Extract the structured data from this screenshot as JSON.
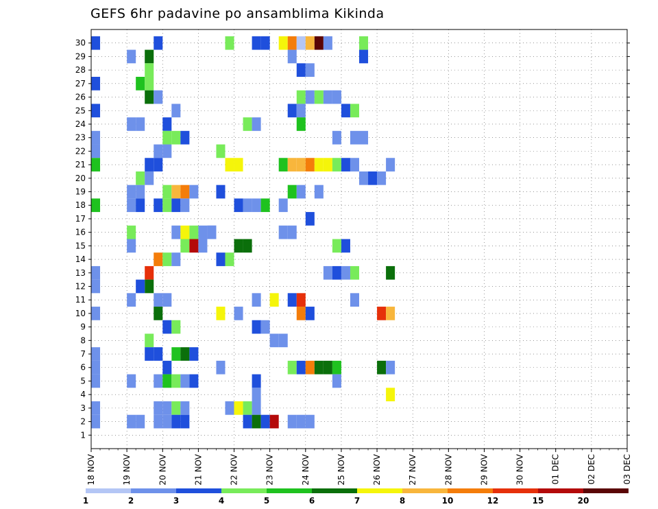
{
  "chart_data": {
    "type": "heatmap",
    "title": "GEFS 6hr padavine po ansamblima Kikinda",
    "y_ticks": [
      "1",
      "2",
      "3",
      "4",
      "5",
      "6",
      "7",
      "8",
      "9",
      "10",
      "11",
      "12",
      "13",
      "14",
      "15",
      "16",
      "17",
      "18",
      "19",
      "20",
      "21",
      "22",
      "23",
      "24",
      "25",
      "26",
      "27",
      "28",
      "29",
      "30"
    ],
    "x_ticks": [
      "18 NOV",
      "19 NOV",
      "20 NOV",
      "21 NOV",
      "22 NOV",
      "23 NOV",
      "24 NOV",
      "25 NOV",
      "26 NOV",
      "27 NOV",
      "28 NOV",
      "29 NOV",
      "30 NOV",
      "01 DEC",
      "02 DEC",
      "03 DEC"
    ],
    "x_steps_per_day": 4,
    "x_range_steps": [
      0,
      60
    ],
    "y_range_members": [
      0,
      30
    ],
    "grid": true,
    "colorbar": {
      "colors": [
        "#b4c6f5",
        "#6e91ea",
        "#1f4fdc",
        "#78eb5a",
        "#1fc21f",
        "#0b6f0b",
        "#f5f50a",
        "#f8b63c",
        "#f47d0a",
        "#e6300a",
        "#b40a0a",
        "#5a0505"
      ],
      "labels": [
        "1",
        "2",
        "3",
        "4",
        "5",
        "6",
        "7",
        "8",
        "10",
        "12",
        "15",
        "20"
      ],
      "placement": "bottom"
    },
    "cells": [
      [
        30,
        0,
        2
      ],
      [
        30,
        7,
        2
      ],
      [
        30,
        15,
        3
      ],
      [
        30,
        18,
        2
      ],
      [
        30,
        19,
        2
      ],
      [
        30,
        21,
        6
      ],
      [
        30,
        22,
        8
      ],
      [
        30,
        23,
        0
      ],
      [
        30,
        24,
        7
      ],
      [
        30,
        25,
        11
      ],
      [
        30,
        26,
        1
      ],
      [
        30,
        30,
        3
      ],
      [
        29,
        4,
        1
      ],
      [
        29,
        6,
        5
      ],
      [
        29,
        22,
        1
      ],
      [
        29,
        30,
        2
      ],
      [
        28,
        6,
        3
      ],
      [
        28,
        23,
        2
      ],
      [
        28,
        24,
        1
      ],
      [
        27,
        0,
        2
      ],
      [
        27,
        5,
        4
      ],
      [
        27,
        6,
        3
      ],
      [
        26,
        6,
        5
      ],
      [
        26,
        7,
        1
      ],
      [
        26,
        23,
        3
      ],
      [
        26,
        24,
        1
      ],
      [
        26,
        25,
        3
      ],
      [
        26,
        26,
        1
      ],
      [
        26,
        27,
        1
      ],
      [
        25,
        0,
        2
      ],
      [
        25,
        9,
        1
      ],
      [
        25,
        22,
        2
      ],
      [
        25,
        23,
        1
      ],
      [
        25,
        28,
        2
      ],
      [
        25,
        29,
        3
      ],
      [
        24,
        4,
        1
      ],
      [
        24,
        5,
        1
      ],
      [
        24,
        8,
        2
      ],
      [
        24,
        17,
        3
      ],
      [
        24,
        18,
        1
      ],
      [
        24,
        23,
        4
      ],
      [
        23,
        0,
        1
      ],
      [
        23,
        8,
        3
      ],
      [
        23,
        9,
        3
      ],
      [
        23,
        10,
        2
      ],
      [
        23,
        27,
        1
      ],
      [
        23,
        29,
        1
      ],
      [
        23,
        30,
        1
      ],
      [
        22,
        0,
        1
      ],
      [
        22,
        7,
        1
      ],
      [
        22,
        8,
        1
      ],
      [
        22,
        14,
        3
      ],
      [
        21,
        0,
        4
      ],
      [
        21,
        6,
        2
      ],
      [
        21,
        7,
        2
      ],
      [
        21,
        15,
        6
      ],
      [
        21,
        16,
        6
      ],
      [
        21,
        21,
        4
      ],
      [
        21,
        22,
        7
      ],
      [
        21,
        23,
        7
      ],
      [
        21,
        24,
        8
      ],
      [
        21,
        25,
        6
      ],
      [
        21,
        26,
        6
      ],
      [
        21,
        27,
        3
      ],
      [
        21,
        28,
        2
      ],
      [
        21,
        29,
        1
      ],
      [
        21,
        33,
        1
      ],
      [
        20,
        5,
        3
      ],
      [
        20,
        6,
        1
      ],
      [
        20,
        30,
        1
      ],
      [
        20,
        31,
        2
      ],
      [
        20,
        32,
        1
      ],
      [
        19,
        4,
        1
      ],
      [
        19,
        5,
        1
      ],
      [
        19,
        8,
        3
      ],
      [
        19,
        9,
        7
      ],
      [
        19,
        10,
        8
      ],
      [
        19,
        11,
        1
      ],
      [
        19,
        14,
        2
      ],
      [
        19,
        22,
        4
      ],
      [
        19,
        23,
        1
      ],
      [
        19,
        25,
        1
      ],
      [
        18,
        0,
        4
      ],
      [
        18,
        4,
        1
      ],
      [
        18,
        5,
        2
      ],
      [
        18,
        7,
        2
      ],
      [
        18,
        8,
        3
      ],
      [
        18,
        9,
        2
      ],
      [
        18,
        10,
        1
      ],
      [
        18,
        16,
        2
      ],
      [
        18,
        17,
        1
      ],
      [
        18,
        18,
        1
      ],
      [
        18,
        19,
        4
      ],
      [
        18,
        21,
        1
      ],
      [
        17,
        24,
        2
      ],
      [
        16,
        4,
        3
      ],
      [
        16,
        9,
        1
      ],
      [
        16,
        10,
        6
      ],
      [
        16,
        11,
        3
      ],
      [
        16,
        12,
        1
      ],
      [
        16,
        13,
        1
      ],
      [
        16,
        13,
        1
      ],
      [
        16,
        21,
        1
      ],
      [
        16,
        22,
        1
      ],
      [
        15,
        4,
        1
      ],
      [
        15,
        10,
        3
      ],
      [
        15,
        11,
        10
      ],
      [
        15,
        12,
        1
      ],
      [
        15,
        16,
        5
      ],
      [
        15,
        17,
        5
      ],
      [
        15,
        27,
        3
      ],
      [
        15,
        28,
        2
      ],
      [
        14,
        7,
        8
      ],
      [
        14,
        8,
        3
      ],
      [
        14,
        9,
        1
      ],
      [
        14,
        14,
        2
      ],
      [
        14,
        15,
        3
      ],
      [
        13,
        0,
        1
      ],
      [
        13,
        6,
        9
      ],
      [
        13,
        26,
        1
      ],
      [
        13,
        27,
        2
      ],
      [
        13,
        28,
        1
      ],
      [
        13,
        29,
        3
      ],
      [
        13,
        33,
        5
      ],
      [
        12,
        0,
        1
      ],
      [
        12,
        6,
        5
      ],
      [
        12,
        5,
        2
      ],
      [
        11,
        4,
        1
      ],
      [
        11,
        7,
        1
      ],
      [
        11,
        8,
        1
      ],
      [
        11,
        18,
        1
      ],
      [
        11,
        20,
        6
      ],
      [
        11,
        22,
        2
      ],
      [
        11,
        23,
        9
      ],
      [
        11,
        29,
        1
      ],
      [
        10,
        0,
        1
      ],
      [
        10,
        7,
        5
      ],
      [
        10,
        14,
        6
      ],
      [
        10,
        16,
        1
      ],
      [
        10,
        23,
        8
      ],
      [
        10,
        24,
        2
      ],
      [
        10,
        32,
        9
      ],
      [
        10,
        33,
        7
      ],
      [
        9,
        8,
        2
      ],
      [
        9,
        9,
        3
      ],
      [
        9,
        18,
        2
      ],
      [
        9,
        19,
        1
      ],
      [
        8,
        6,
        3
      ],
      [
        8,
        20,
        1
      ],
      [
        8,
        21,
        1
      ],
      [
        7,
        0,
        1
      ],
      [
        7,
        6,
        2
      ],
      [
        7,
        7,
        2
      ],
      [
        7,
        9,
        4
      ],
      [
        7,
        10,
        5
      ],
      [
        7,
        11,
        2
      ],
      [
        6,
        0,
        1
      ],
      [
        6,
        8,
        2
      ],
      [
        6,
        14,
        1
      ],
      [
        6,
        22,
        3
      ],
      [
        6,
        23,
        2
      ],
      [
        6,
        24,
        8
      ],
      [
        6,
        25,
        5
      ],
      [
        6,
        26,
        5
      ],
      [
        6,
        27,
        4
      ],
      [
        6,
        32,
        5
      ],
      [
        6,
        33,
        1
      ],
      [
        5,
        0,
        1
      ],
      [
        5,
        4,
        1
      ],
      [
        5,
        7,
        1
      ],
      [
        5,
        8,
        4
      ],
      [
        5,
        9,
        3
      ],
      [
        5,
        10,
        1
      ],
      [
        5,
        11,
        2
      ],
      [
        5,
        18,
        2
      ],
      [
        5,
        27,
        1
      ],
      [
        4,
        18,
        1
      ],
      [
        4,
        33,
        6
      ],
      [
        3,
        0,
        1
      ],
      [
        3,
        7,
        1
      ],
      [
        3,
        8,
        1
      ],
      [
        3,
        9,
        3
      ],
      [
        3,
        10,
        1
      ],
      [
        3,
        15,
        1
      ],
      [
        3,
        16,
        6
      ],
      [
        3,
        17,
        3
      ],
      [
        3,
        18,
        1
      ],
      [
        2,
        0,
        1
      ],
      [
        2,
        4,
        1
      ],
      [
        2,
        5,
        1
      ],
      [
        2,
        7,
        1
      ],
      [
        2,
        8,
        1
      ],
      [
        2,
        9,
        2
      ],
      [
        2,
        10,
        2
      ],
      [
        2,
        17,
        2
      ],
      [
        2,
        18,
        5
      ],
      [
        2,
        19,
        2
      ],
      [
        2,
        20,
        10
      ],
      [
        2,
        22,
        1
      ],
      [
        2,
        23,
        1
      ],
      [
        2,
        24,
        1
      ]
    ]
  }
}
